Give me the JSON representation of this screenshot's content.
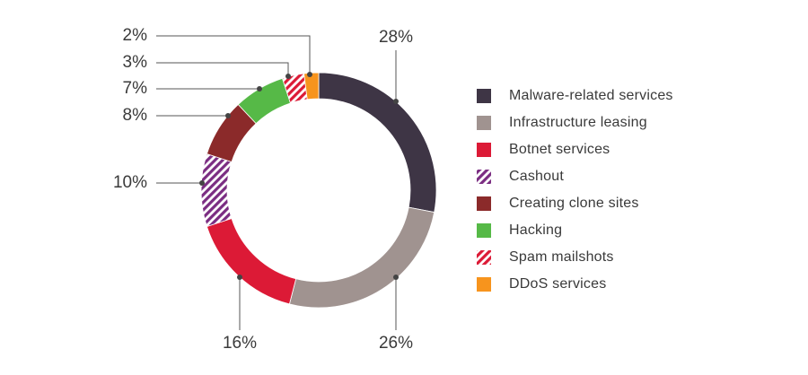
{
  "chart_data": {
    "type": "pie",
    "subtype": "donut",
    "title": "",
    "slices": [
      {
        "label": "Malware-related services",
        "value": 28,
        "value_label": "28%",
        "color": "#3e3545",
        "pattern": "solid"
      },
      {
        "label": "Infrastructure leasing",
        "value": 26,
        "value_label": "26%",
        "color": "#a09390",
        "pattern": "solid"
      },
      {
        "label": "Botnet services",
        "value": 16,
        "value_label": "16%",
        "color": "#dc1a36",
        "pattern": "solid"
      },
      {
        "label": "Cashout",
        "value": 10,
        "value_label": "10%",
        "color": "#7b2d82",
        "pattern": "hatch"
      },
      {
        "label": "Creating clone sites",
        "value": 8,
        "value_label": "8%",
        "color": "#8b2a2a",
        "pattern": "solid"
      },
      {
        "label": "Hacking",
        "value": 7,
        "value_label": "7%",
        "color": "#56b947",
        "pattern": "solid"
      },
      {
        "label": "Spam mailshots",
        "value": 3,
        "value_label": "3%",
        "color": "#dc1a36",
        "pattern": "hatch"
      },
      {
        "label": "DDoS services",
        "value": 2,
        "value_label": "2%",
        "color": "#f7941d",
        "pattern": "solid"
      }
    ],
    "legend_position": "right",
    "label_color": "#3a3a3a",
    "leader_line_color": "#555555"
  }
}
